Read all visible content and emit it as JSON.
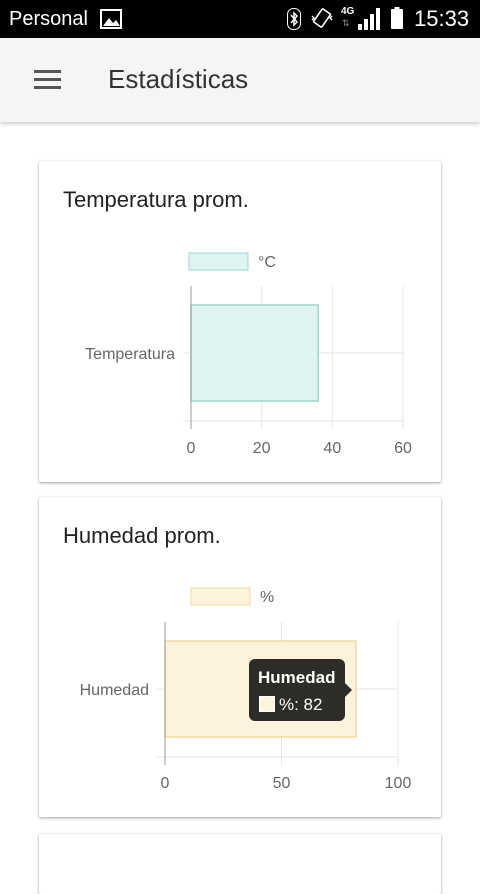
{
  "status_bar": {
    "carrier": "Personal",
    "network": "4G",
    "network_arrows": "⇅",
    "time": "15:33"
  },
  "app_bar": {
    "title": "Estadísticas"
  },
  "colors": {
    "temperature_fill": "#dff3f0",
    "temperature_border": "#9fd6cf",
    "humidity_fill": "#fdf3dc",
    "humidity_border": "#f2d9a2",
    "grid": "#e6e6e6",
    "axis": "#999999",
    "tick_text": "#666666"
  },
  "cards": [
    {
      "title": "Temperatura prom."
    },
    {
      "title": "Humedad prom.",
      "tooltip": {
        "title": "Humedad",
        "value": "%: 82"
      }
    }
  ],
  "chart_data": [
    {
      "type": "bar",
      "orientation": "horizontal",
      "categories": [
        "Temperatura"
      ],
      "series": [
        {
          "name": "°C",
          "values": [
            36
          ]
        }
      ],
      "xlim": [
        0,
        60
      ],
      "xticks": [
        0,
        20,
        40,
        60
      ],
      "grid": true,
      "legend": "top"
    },
    {
      "type": "bar",
      "orientation": "horizontal",
      "categories": [
        "Humedad"
      ],
      "series": [
        {
          "name": "%",
          "values": [
            82
          ]
        }
      ],
      "xlim": [
        0,
        100
      ],
      "xticks": [
        0,
        50,
        100
      ],
      "grid": true,
      "legend": "top"
    }
  ]
}
